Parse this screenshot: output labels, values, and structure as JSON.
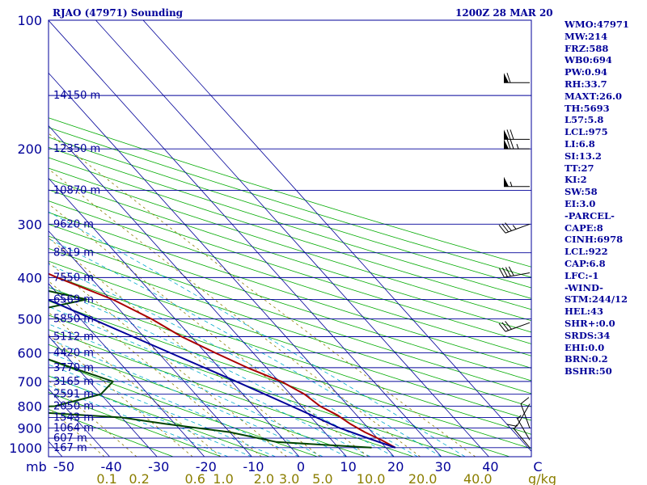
{
  "chart_data": {
    "type": "skew-t log-p sounding",
    "title": "RJAO (47971) Sounding",
    "datetime": "1200Z 28 MAR 20",
    "pressure_axis_label": "mb",
    "pressure_ticks": [
      100,
      200,
      300,
      400,
      500,
      600,
      700,
      800,
      900,
      1000
    ],
    "temperature_ticks": [
      "-50",
      "-40",
      "-30",
      "-20",
      "-10",
      "0",
      "10",
      "20",
      "30",
      "40",
      "C"
    ],
    "mixing_ratio_ticks": [
      "0.1",
      "0.2",
      "0.6",
      "1.0",
      "2.0",
      "3.0",
      "5.0",
      "10.0",
      "20.0",
      "40.0"
    ],
    "mixing_ratio_unit": "g/kg",
    "height_levels": [
      {
        "p": 150,
        "label": "14150 m"
      },
      {
        "p": 200,
        "label": "12350 m"
      },
      {
        "p": 250,
        "label": "10870 m"
      },
      {
        "p": 300,
        "label": "9620 m"
      },
      {
        "p": 350,
        "label": "8519 m"
      },
      {
        "p": 400,
        "label": "7550 m"
      },
      {
        "p": 450,
        "label": "6569 m"
      },
      {
        "p": 500,
        "label": "5850 m"
      },
      {
        "p": 550,
        "label": "5112 m"
      },
      {
        "p": 600,
        "label": "4420 m"
      },
      {
        "p": 650,
        "label": "3770 m"
      },
      {
        "p": 700,
        "label": "3165 m"
      },
      {
        "p": 750,
        "label": "2591 m"
      },
      {
        "p": 800,
        "label": "2050 m"
      },
      {
        "p": 850,
        "label": "1543 m"
      },
      {
        "p": 900,
        "label": "1064 m"
      },
      {
        "p": 950,
        "label": "607 m"
      },
      {
        "p": 1000,
        "label": "167 m"
      }
    ],
    "series": [
      {
        "name": "temperature",
        "color": "#aa0000",
        "points": [
          [
            110,
            -58.5
          ],
          [
            150,
            -56
          ],
          [
            180,
            -54.5
          ],
          [
            200,
            -50
          ],
          [
            250,
            -40.5
          ],
          [
            300,
            -32
          ],
          [
            350,
            -24.5
          ],
          [
            400,
            -17
          ],
          [
            450,
            -9.5
          ],
          [
            500,
            -5
          ],
          [
            550,
            -2
          ],
          [
            600,
            2
          ],
          [
            650,
            6
          ],
          [
            700,
            10.5
          ],
          [
            750,
            13
          ],
          [
            800,
            14
          ],
          [
            840,
            16
          ],
          [
            880,
            17
          ],
          [
            920,
            18.5
          ],
          [
            960,
            20.5
          ],
          [
            1000,
            22
          ]
        ]
      },
      {
        "name": "dewpoint",
        "color": "#004400",
        "points": [
          [
            270,
            -35
          ],
          [
            300,
            -40
          ],
          [
            330,
            -60
          ],
          [
            400,
            -31.5
          ],
          [
            450,
            -15
          ],
          [
            500,
            -38
          ],
          [
            550,
            -42
          ],
          [
            570,
            -35
          ],
          [
            600,
            -37
          ],
          [
            650,
            -31
          ],
          [
            700,
            -25
          ],
          [
            750,
            -30
          ],
          [
            800,
            -42
          ],
          [
            810,
            -59
          ],
          [
            850,
            -30
          ],
          [
            880,
            -22
          ],
          [
            920,
            -10
          ],
          [
            970,
            -2
          ],
          [
            1000,
            17
          ]
        ]
      },
      {
        "name": "parcel",
        "color": "#000099",
        "points": [
          [
            120,
            -76
          ],
          [
            200,
            -60
          ],
          [
            300,
            -43
          ],
          [
            400,
            -29.5
          ],
          [
            500,
            -17.5
          ],
          [
            600,
            -7.5
          ],
          [
            700,
            1
          ],
          [
            800,
            8
          ],
          [
            900,
            14
          ],
          [
            950,
            18
          ],
          [
            1000,
            22
          ]
        ]
      }
    ],
    "wind_barbs": [
      {
        "p": 140,
        "dir": 270,
        "kt": 60
      },
      {
        "p": 190,
        "dir": 270,
        "kt": 70
      },
      {
        "p": 200,
        "dir": 270,
        "kt": 75
      },
      {
        "p": 245,
        "dir": 270,
        "kt": 55
      },
      {
        "p": 300,
        "dir": 250,
        "kt": 35
      },
      {
        "p": 390,
        "dir": 260,
        "kt": 40
      },
      {
        "p": 510,
        "dir": 250,
        "kt": 30
      },
      {
        "p": 790,
        "dir": 210,
        "kt": 10
      },
      {
        "p": 900,
        "dir": 340,
        "kt": 10
      },
      {
        "p": 960,
        "dir": 330,
        "kt": 5
      },
      {
        "p": 1000,
        "dir": 320,
        "kt": 5
      }
    ]
  },
  "stats": [
    "WMO:47971",
    "MW:214",
    "FRZ:588",
    "WB0:694",
    "PW:0.94",
    "RH:33.7",
    "MAXT:26.0",
    "TH:5693",
    "L57:5.8",
    "LCL:975",
    "LI:6.8",
    "SI:13.2",
    "TT:27",
    "KI:2",
    "SW:58",
    "EI:3.0",
    "-PARCEL-",
    "CAPE:8",
    "CINH:6978",
    "LCL:922",
    "CAP:6.8",
    "LFC:-1",
    "-WIND-",
    "STM:244/12",
    "HEL:43",
    "SHR+:0.0",
    "SRDS:34",
    "EHI:0.0",
    "BRN:0.2",
    "BSHR:50"
  ],
  "colors": {
    "isobar": "#000099",
    "isotherm": "#000099",
    "dry_adiabat": "#00aa00",
    "moist_adiabat": "#00aacc",
    "mixing_ratio": "#8b7e00",
    "text": "#000099"
  }
}
